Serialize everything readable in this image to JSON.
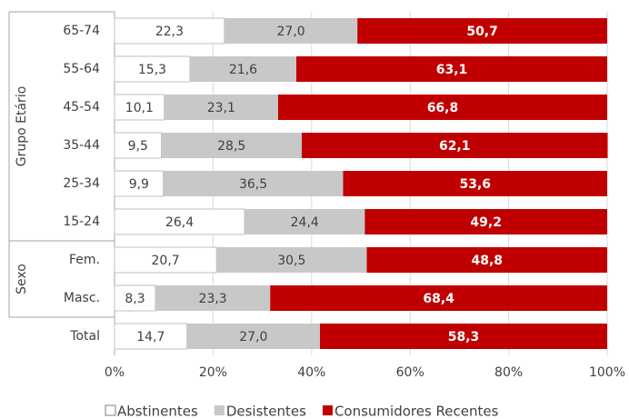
{
  "chart_data": {
    "type": "stacked_bar_h",
    "categories": [
      "65-74",
      "55-64",
      "45-54",
      "35-44",
      "25-34",
      "15-24",
      "Fem.",
      "Masc.",
      "Total"
    ],
    "groups": [
      {
        "label": "Grupo Etário",
        "count": 6
      },
      {
        "label": "Sexo",
        "count": 2
      }
    ],
    "series": [
      {
        "name": "Abstinentes",
        "color": "#ffffff",
        "values": [
          22.3,
          15.3,
          10.1,
          9.5,
          9.9,
          26.4,
          20.7,
          8.3,
          14.7
        ],
        "value_labels": [
          "22,3",
          "15,3",
          "10,1",
          "9,5",
          "9,9",
          "26,4",
          "20,7",
          "8,3",
          "14,7"
        ]
      },
      {
        "name": "Desistentes",
        "color": "#c8c8c8",
        "values": [
          27.0,
          21.6,
          23.1,
          28.5,
          36.5,
          24.4,
          30.5,
          23.3,
          27.0
        ],
        "value_labels": [
          "27,0",
          "21,6",
          "23,1",
          "28,5",
          "36,5",
          "24,4",
          "30,5",
          "23,3",
          "27,0"
        ]
      },
      {
        "name": "Consumidores Recentes",
        "color": "#c00000",
        "values": [
          50.7,
          63.1,
          66.8,
          62.1,
          53.6,
          49.2,
          48.8,
          68.4,
          58.3
        ],
        "value_labels": [
          "50,7",
          "63,1",
          "66,8",
          "62,1",
          "53,6",
          "49,2",
          "48,8",
          "68,4",
          "58,3"
        ]
      }
    ],
    "xlim": [
      0,
      100
    ],
    "xticks": [
      {
        "value": 0,
        "label": "0%"
      },
      {
        "value": 20,
        "label": "20%"
      },
      {
        "value": 40,
        "label": "40%"
      },
      {
        "value": 60,
        "label": "60%"
      },
      {
        "value": 80,
        "label": "80%"
      },
      {
        "value": 100,
        "label": "100%"
      }
    ],
    "grid": true
  }
}
